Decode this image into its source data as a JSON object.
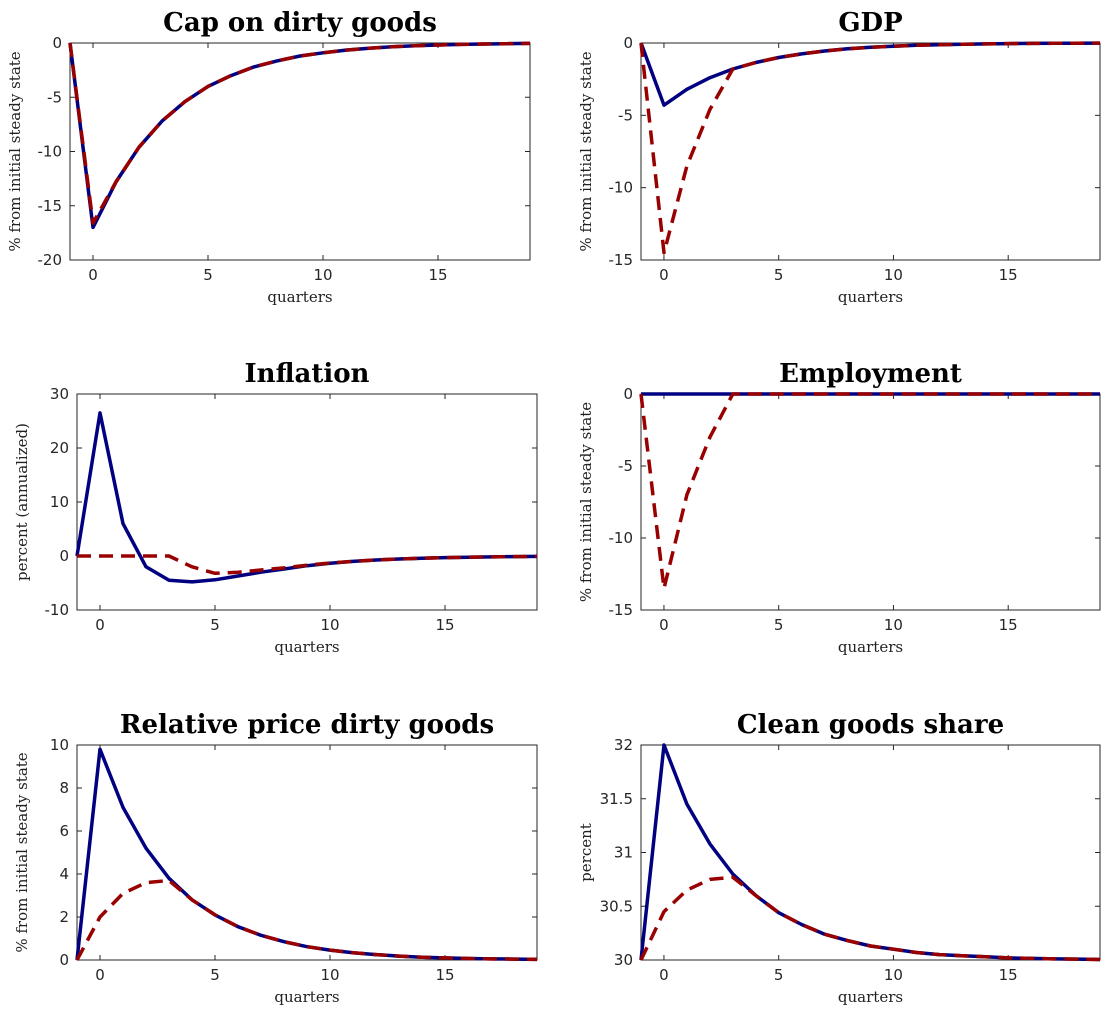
{
  "figure": {
    "colors": {
      "solid": "#000080",
      "dashed": "#990000"
    }
  },
  "chart_data": [
    {
      "type": "line",
      "title": "Cap on dirty goods",
      "xlabel": "quarters",
      "ylabel": "% from initial steady state",
      "xlim": [
        -1,
        19
      ],
      "ylim": [
        -20,
        0
      ],
      "xticks": [
        0,
        5,
        10,
        15
      ],
      "yticks": [
        -20,
        -15,
        -10,
        -5,
        0
      ],
      "grid": false,
      "x": [
        -1,
        0,
        1,
        2,
        3,
        4,
        5,
        6,
        7,
        8,
        9,
        10,
        11,
        12,
        13,
        14,
        15,
        16,
        17,
        18,
        19
      ],
      "series": [
        {
          "style": "solid",
          "values": [
            0,
            -17,
            -12.8,
            -9.6,
            -7.2,
            -5.4,
            -4.0,
            -3.0,
            -2.2,
            -1.65,
            -1.2,
            -0.9,
            -0.65,
            -0.48,
            -0.35,
            -0.25,
            -0.18,
            -0.13,
            -0.09,
            -0.06,
            -0.04
          ]
        },
        {
          "style": "dashed",
          "values": [
            0,
            -16.6,
            -12.8,
            -9.6,
            -7.2,
            -5.4,
            -4.0,
            -3.0,
            -2.2,
            -1.65,
            -1.2,
            -0.9,
            -0.65,
            -0.48,
            -0.35,
            -0.25,
            -0.18,
            -0.13,
            -0.09,
            -0.06,
            -0.04
          ]
        }
      ]
    },
    {
      "type": "line",
      "title": "GDP",
      "xlabel": "quarters",
      "ylabel": "% from initial steady state",
      "xlim": [
        -1,
        19
      ],
      "ylim": [
        -15,
        0
      ],
      "xticks": [
        0,
        5,
        10,
        15
      ],
      "yticks": [
        -15,
        -10,
        -5,
        0
      ],
      "grid": false,
      "x": [
        -1,
        0,
        1,
        2,
        3,
        4,
        5,
        6,
        7,
        8,
        9,
        10,
        11,
        12,
        13,
        14,
        15,
        16,
        17,
        18,
        19
      ],
      "series": [
        {
          "style": "solid",
          "values": [
            0,
            -4.3,
            -3.2,
            -2.4,
            -1.8,
            -1.35,
            -1.0,
            -0.75,
            -0.55,
            -0.4,
            -0.3,
            -0.22,
            -0.16,
            -0.12,
            -0.09,
            -0.06,
            -0.04,
            -0.03,
            -0.02,
            -0.015,
            -0.01
          ]
        },
        {
          "style": "dashed",
          "values": [
            0,
            -14.5,
            -8.5,
            -4.6,
            -1.8,
            -1.35,
            -1.0,
            -0.75,
            -0.55,
            -0.4,
            -0.3,
            -0.22,
            -0.16,
            -0.12,
            -0.09,
            -0.06,
            -0.04,
            -0.03,
            -0.02,
            -0.015,
            -0.01
          ]
        }
      ]
    },
    {
      "type": "line",
      "title": "Inflation",
      "xlabel": "quarters",
      "ylabel": "percent (annualized)",
      "xlim": [
        -1,
        19
      ],
      "ylim": [
        -10,
        30
      ],
      "xticks": [
        0,
        5,
        10,
        15
      ],
      "yticks": [
        -10,
        0,
        10,
        20,
        30
      ],
      "grid": false,
      "x": [
        -1,
        0,
        1,
        2,
        3,
        4,
        5,
        6,
        7,
        8,
        9,
        10,
        11,
        12,
        13,
        14,
        15,
        16,
        17,
        18,
        19
      ],
      "series": [
        {
          "style": "solid",
          "values": [
            0,
            26.5,
            6.0,
            -2.0,
            -4.5,
            -4.8,
            -4.4,
            -3.7,
            -3.0,
            -2.4,
            -1.8,
            -1.35,
            -1.0,
            -0.75,
            -0.55,
            -0.4,
            -0.3,
            -0.22,
            -0.16,
            -0.12,
            -0.08
          ]
        },
        {
          "style": "dashed",
          "values": [
            0,
            0,
            0,
            0,
            0,
            -2.0,
            -3.2,
            -3.0,
            -2.6,
            -2.2,
            -1.7,
            -1.3,
            -1.0,
            -0.75,
            -0.55,
            -0.4,
            -0.3,
            -0.22,
            -0.16,
            -0.12,
            -0.08
          ]
        }
      ]
    },
    {
      "type": "line",
      "title": "Employment",
      "xlabel": "quarters",
      "ylabel": "% from initial steady state",
      "xlim": [
        -1,
        19
      ],
      "ylim": [
        -15,
        0
      ],
      "xticks": [
        0,
        5,
        10,
        15
      ],
      "yticks": [
        -15,
        -10,
        -5,
        0
      ],
      "grid": false,
      "x": [
        -1,
        0,
        1,
        2,
        3,
        4,
        5,
        6,
        7,
        8,
        9,
        10,
        11,
        12,
        13,
        14,
        15,
        16,
        17,
        18,
        19
      ],
      "series": [
        {
          "style": "solid",
          "values": [
            0,
            0,
            0,
            0,
            0,
            0,
            0,
            0,
            0,
            0,
            0,
            0,
            0,
            0,
            0,
            0,
            0,
            0,
            0,
            0,
            0
          ]
        },
        {
          "style": "dashed",
          "values": [
            0,
            -13.5,
            -7.0,
            -3.0,
            0,
            0,
            0,
            0,
            0,
            0,
            0,
            0,
            0,
            0,
            0,
            0,
            0,
            0,
            0,
            0,
            0
          ]
        }
      ]
    },
    {
      "type": "line",
      "title": "Relative price dirty goods",
      "xlabel": "quarters",
      "ylabel": "% from initial steady state",
      "xlim": [
        -1,
        19
      ],
      "ylim": [
        0,
        10
      ],
      "xticks": [
        0,
        5,
        10,
        15
      ],
      "yticks": [
        0,
        2,
        4,
        6,
        8,
        10
      ],
      "grid": false,
      "x": [
        -1,
        0,
        1,
        2,
        3,
        4,
        5,
        6,
        7,
        8,
        9,
        10,
        11,
        12,
        13,
        14,
        15,
        16,
        17,
        18,
        19
      ],
      "series": [
        {
          "style": "solid",
          "values": [
            0,
            9.8,
            7.1,
            5.2,
            3.8,
            2.8,
            2.1,
            1.55,
            1.15,
            0.85,
            0.62,
            0.46,
            0.34,
            0.25,
            0.18,
            0.13,
            0.1,
            0.07,
            0.05,
            0.04,
            0.03
          ]
        },
        {
          "style": "dashed",
          "values": [
            0,
            2.0,
            3.1,
            3.6,
            3.7,
            2.8,
            2.1,
            1.55,
            1.15,
            0.85,
            0.62,
            0.46,
            0.34,
            0.25,
            0.18,
            0.13,
            0.1,
            0.07,
            0.05,
            0.04,
            0.03
          ]
        }
      ]
    },
    {
      "type": "line",
      "title": "Clean goods share",
      "xlabel": "quarters",
      "ylabel": "percent",
      "xlim": [
        -1,
        19
      ],
      "ylim": [
        30,
        32
      ],
      "xticks": [
        0,
        5,
        10,
        15
      ],
      "yticks": [
        30,
        30.5,
        31,
        31.5,
        32
      ],
      "grid": false,
      "x": [
        -1,
        0,
        1,
        2,
        3,
        4,
        5,
        6,
        7,
        8,
        9,
        10,
        11,
        12,
        13,
        14,
        15,
        16,
        17,
        18,
        19
      ],
      "series": [
        {
          "style": "solid",
          "values": [
            30,
            32.0,
            31.45,
            31.08,
            30.8,
            30.6,
            30.44,
            30.33,
            30.24,
            30.18,
            30.13,
            30.1,
            30.07,
            30.05,
            30.04,
            30.03,
            30.02,
            30.015,
            30.01,
            30.008,
            30.005
          ]
        },
        {
          "style": "dashed",
          "values": [
            30,
            30.45,
            30.65,
            30.75,
            30.77,
            30.6,
            30.44,
            30.33,
            30.24,
            30.18,
            30.13,
            30.1,
            30.07,
            30.05,
            30.04,
            30.03,
            30.02,
            30.015,
            30.01,
            30.008,
            30.005
          ]
        }
      ]
    }
  ]
}
